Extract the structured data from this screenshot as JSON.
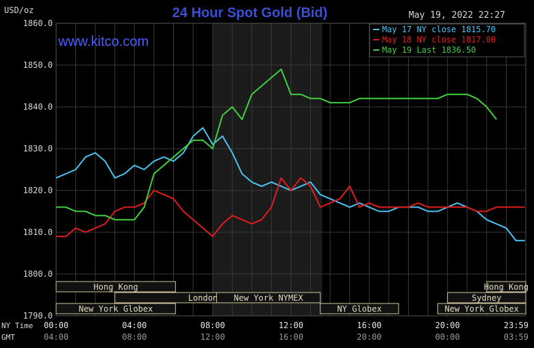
{
  "title": "24 Hour Spot Gold (Bid)",
  "unit_label": "USD/oz",
  "watermark": "www.kitco.com",
  "timestamp": "May 19, 2022 22:27",
  "time_rows": [
    {
      "label": "NY Time",
      "ticks": [
        "00:00",
        "04:00",
        "08:00",
        "12:00",
        "16:00",
        "20:00",
        "23:59"
      ]
    },
    {
      "label": "GMT",
      "ticks": [
        "04:00",
        "08:00",
        "12:00",
        "16:00",
        "20:00",
        "00:00",
        "03:59"
      ]
    }
  ],
  "sessions": [
    {
      "label": "Hong Kong",
      "start": 0,
      "end": 6.1
    },
    {
      "label": "London",
      "start": 3.0,
      "end": 12.0
    },
    {
      "label": "New York Globex",
      "start": 0,
      "end": 6.1
    },
    {
      "label": "New York NYMEX",
      "start": 8.2,
      "end": 13.5
    },
    {
      "label": "NY Globex",
      "start": 13.5,
      "end": 17.5
    },
    {
      "label": "Hong Kong",
      "start": 22.0,
      "end": 24.0
    },
    {
      "label": "Sydney",
      "start": 20.0,
      "end": 24.0
    },
    {
      "label": "New York Globex",
      "start": 19.5,
      "end": 24.0
    }
  ],
  "colors": {
    "background": "#000000",
    "grid": "#3a3a3a",
    "shade": "#1b1b1b",
    "text": "#d8d8d8",
    "title": "#3a4fd6",
    "watermark": "#4a5bff",
    "session_fill": "#111111",
    "session_border": "#cfc7a0"
  },
  "chart_data": {
    "type": "line",
    "title": "24 Hour Spot Gold (Bid)",
    "ylabel": "USD/oz",
    "ylim": [
      1790.0,
      1860.0
    ],
    "yticks": [
      1790.0,
      1800.0,
      1810.0,
      1820.0,
      1830.0,
      1840.0,
      1850.0,
      1860.0
    ],
    "xlim": [
      0,
      24
    ],
    "shaded_region": [
      8.0,
      13.6
    ],
    "grid": true,
    "legend_position": "top-right",
    "series": [
      {
        "name": "May 17 NY close 1815.70",
        "color": "#4cc3f0",
        "x": [
          0,
          0.5,
          1,
          1.5,
          2,
          2.5,
          3,
          3.5,
          4,
          4.5,
          5,
          5.5,
          6,
          6.5,
          7,
          7.5,
          8,
          8.5,
          9,
          9.5,
          10,
          10.5,
          11,
          11.5,
          12,
          12.5,
          13,
          13.5,
          14,
          14.5,
          15,
          15.5,
          16,
          16.5,
          17,
          17.5,
          18,
          18.5,
          19,
          19.5,
          20,
          20.5,
          21,
          21.5,
          22,
          22.5,
          23,
          23.5,
          23.95
        ],
        "values": [
          1823,
          1824,
          1825,
          1828,
          1829,
          1827,
          1823,
          1824,
          1826,
          1825,
          1827,
          1828,
          1827,
          1829,
          1833,
          1835,
          1831,
          1833,
          1829,
          1824,
          1822,
          1821,
          1822,
          1821,
          1820,
          1821,
          1822,
          1819,
          1818,
          1817,
          1816,
          1817,
          1816,
          1815,
          1815,
          1816,
          1816,
          1816,
          1815,
          1815,
          1816,
          1817,
          1816,
          1815,
          1813,
          1812,
          1811,
          1808,
          1808
        ]
      },
      {
        "name": "May 18 NY close 1817.00",
        "color": "#e01d1d",
        "x": [
          0,
          0.5,
          1,
          1.5,
          2,
          2.5,
          3,
          3.5,
          4,
          4.5,
          5,
          5.5,
          6,
          6.5,
          7,
          7.5,
          8,
          8.5,
          9,
          9.5,
          10,
          10.5,
          11,
          11.5,
          12,
          12.5,
          13,
          13.5,
          14,
          14.5,
          15,
          15.5,
          16,
          16.5,
          17,
          17.5,
          18,
          18.5,
          19,
          19.5,
          20,
          20.5,
          21,
          21.5,
          22,
          22.5,
          23,
          23.5,
          23.95
        ],
        "values": [
          1809,
          1809,
          1811,
          1810,
          1811,
          1812,
          1815,
          1816,
          1816,
          1817,
          1820,
          1819,
          1818,
          1815,
          1813,
          1811,
          1809,
          1812,
          1814,
          1813,
          1812,
          1813,
          1816,
          1823,
          1820,
          1823,
          1821,
          1816,
          1817,
          1818,
          1821,
          1816,
          1817,
          1816,
          1816,
          1816,
          1816,
          1817,
          1816,
          1816,
          1816,
          1816,
          1816,
          1815,
          1815,
          1816,
          1816,
          1816,
          1816
        ]
      },
      {
        "name": "May 19 Last 1836.50",
        "color": "#3fd13f",
        "x": [
          0,
          0.5,
          1,
          1.5,
          2,
          2.5,
          3,
          3.5,
          4,
          4.5,
          5,
          5.5,
          6,
          6.5,
          7,
          7.5,
          8,
          8.5,
          9,
          9.5,
          10,
          10.5,
          11,
          11.5,
          12,
          12.5,
          13,
          13.5,
          14,
          14.5,
          15,
          15.5,
          16,
          16.5,
          17,
          17.5,
          18,
          18.5,
          19,
          19.5,
          20,
          20.5,
          21,
          21.5,
          22,
          22.5
        ],
        "values": [
          1816,
          1816,
          1815,
          1815,
          1814,
          1814,
          1813,
          1813,
          1813,
          1816,
          1824,
          1826,
          1828,
          1830,
          1832,
          1832,
          1830,
          1838,
          1840,
          1837,
          1843,
          1845,
          1847,
          1849,
          1843,
          1843,
          1842,
          1842,
          1841,
          1841,
          1841,
          1842,
          1842,
          1842,
          1842,
          1842,
          1842,
          1842,
          1842,
          1842,
          1843,
          1843,
          1843,
          1842,
          1840,
          1837
        ]
      }
    ]
  }
}
